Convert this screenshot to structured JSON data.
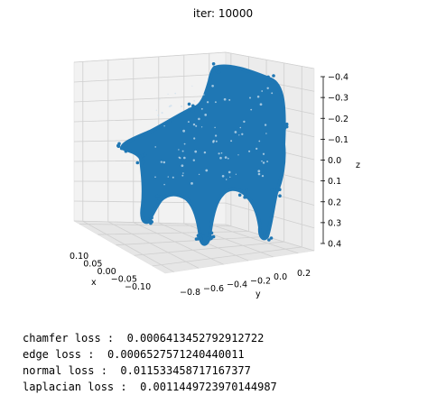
{
  "title": "iter: 10000",
  "chart_data": {
    "type": "scatter",
    "projection": "3d",
    "title": "iter: 10000",
    "xlabel": "x",
    "ylabel": "y",
    "zlabel": "z",
    "xticks": [
      "0.10",
      "0.05",
      "0.00",
      "−0.05",
      "−0.10"
    ],
    "yticks": [
      "−0.8",
      "−0.6",
      "−0.4",
      "−0.2",
      "0.0",
      "0.2"
    ],
    "zticks": [
      "−0.4",
      "−0.3",
      "−0.2",
      "−0.1",
      "0.0",
      "0.1",
      "0.2",
      "0.3",
      "0.4"
    ],
    "xlim": [
      -0.12,
      0.12
    ],
    "ylim": [
      -0.9,
      0.3
    ],
    "zlim": [
      -0.42,
      0.42
    ],
    "zaxis_inverted": true,
    "grid": true,
    "series": [
      {
        "color": "#1f77b4",
        "shape": "chair mesh point cloud"
      }
    ]
  },
  "losses": [
    {
      "label": "chamfer loss",
      "value": "0.0006413452792912722"
    },
    {
      "label": "edge loss",
      "value": "0.0006527571240440011"
    },
    {
      "label": "normal loss",
      "value": "0.011533458717167377"
    },
    {
      "label": "laplacian loss",
      "value": "0.0011449723970144987"
    }
  ]
}
